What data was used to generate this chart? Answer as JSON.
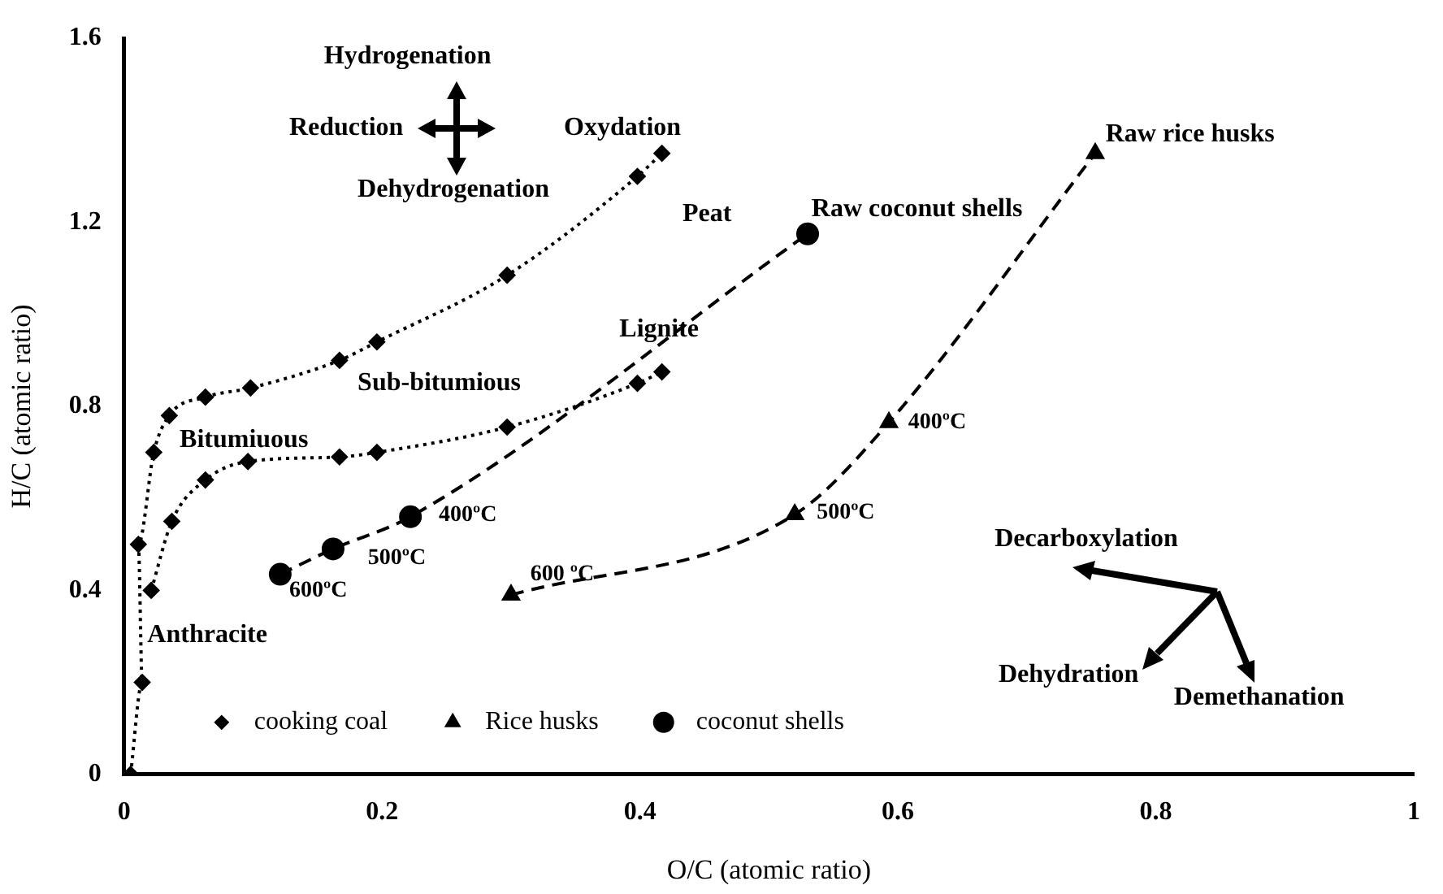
{
  "chart_data": {
    "type": "line",
    "xlabel": "O/C (atomic ratio)",
    "ylabel": "H/C (atomic ratio)",
    "xlim": [
      0,
      1
    ],
    "ylim": [
      0,
      1.6
    ],
    "xticks": [
      0,
      0.2,
      0.4,
      0.6,
      0.8,
      1
    ],
    "yticks": [
      0,
      0.4,
      0.8,
      1.2,
      1.6
    ],
    "grid": false,
    "legend": "bottom",
    "series": [
      {
        "name": "cooking coal",
        "color": "#000000",
        "marker": "diamond",
        "line_style": "dotted",
        "x": [
          0.005,
          0.014,
          0.011,
          0.023,
          0.035,
          0.063,
          0.098,
          0.167,
          0.196,
          0.297,
          0.398,
          0.417
        ],
        "values": [
          0,
          0.2,
          0.5,
          0.7,
          0.78,
          0.82,
          0.84,
          0.9,
          0.94,
          1.085,
          1.3,
          1.35
        ]
      },
      {
        "color": "#000000",
        "marker": "diamond",
        "line_style": "dotted",
        "x": [
          0.021,
          0.037,
          0.063,
          0.096,
          0.167,
          0.196,
          0.297,
          0.398,
          0.417
        ],
        "values": [
          0.4,
          0.55,
          0.64,
          0.68,
          0.69,
          0.7,
          0.755,
          0.85,
          0.875
        ]
      },
      {
        "name": "Rice husks",
        "color": "#000000",
        "marker": "triangle",
        "line_style": "dashed",
        "x": [
          0.3,
          0.52,
          0.593,
          0.753
        ],
        "values": [
          0.39,
          0.565,
          0.765,
          1.35
        ]
      },
      {
        "name": "coconut shells",
        "color": "#000000",
        "marker": "circle",
        "line_style": "dashed",
        "x": [
          0.121,
          0.162,
          0.222,
          0.53
        ],
        "values": [
          0.435,
          0.49,
          0.56,
          1.175
        ]
      }
    ],
    "annotations": [
      "Hydrogenation",
      "Reduction",
      "Oxydation",
      "Dehydrogenation",
      "Peat",
      "Raw coconut shells",
      "Raw rice husks",
      "Lignite",
      "Sub-bitumious",
      "Bitumiuous",
      "Anthracite",
      "400ºC",
      "500ºC",
      "600ºC",
      "600 ºC",
      "500ºC",
      "400ºC",
      "Decarboxylation",
      "Dehydration",
      "Demethanation"
    ]
  }
}
